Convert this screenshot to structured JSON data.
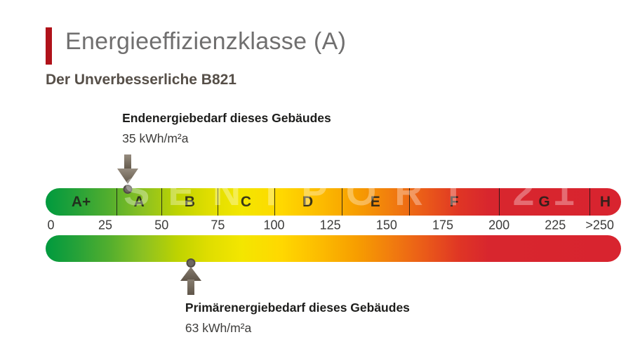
{
  "header": {
    "title": "Energieeffizienzklasse (A)",
    "subtitle": "Der Unverbesserliche B821",
    "accent_color": "#b0121a"
  },
  "watermark": {
    "text": "SENTPORT 21"
  },
  "chart_data": {
    "type": "energy-efficiency-scale",
    "title": "Energieeffizienzklasse (A)",
    "unit": "kWh/m²a",
    "scale_ticks": [
      "0",
      "25",
      "50",
      "75",
      "100",
      "125",
      "150",
      "175",
      "200",
      "225",
      ">250"
    ],
    "axis_range": [
      0,
      250
    ],
    "classes": [
      {
        "label": "A+",
        "from": 0,
        "to": 30
      },
      {
        "label": "A",
        "from": 30,
        "to": 50
      },
      {
        "label": "B",
        "from": 50,
        "to": 75
      },
      {
        "label": "C",
        "from": 75,
        "to": 100
      },
      {
        "label": "D",
        "from": 100,
        "to": 130
      },
      {
        "label": "E",
        "from": 130,
        "to": 160
      },
      {
        "label": "F",
        "from": 160,
        "to": 200
      },
      {
        "label": "G",
        "from": 200,
        "to": 250
      },
      {
        "label": "H",
        "from": 250,
        "to": null
      }
    ],
    "gradient_colors": [
      "#009a3e",
      "#8cc122",
      "#dedd00",
      "#ffd800",
      "#f79e00",
      "#ea5a19",
      "#d8242f"
    ],
    "indicators": [
      {
        "id": "endenergie",
        "label": "Endenergiebedarf dieses Gebäudes",
        "value": 35,
        "value_text": "35 kWh/m²a",
        "position": "above"
      },
      {
        "id": "primaerenergie",
        "label": "Primärenergiebedarf dieses Gebäudes",
        "value": 63,
        "value_text": "63 kWh/m²a",
        "position": "below"
      }
    ]
  }
}
